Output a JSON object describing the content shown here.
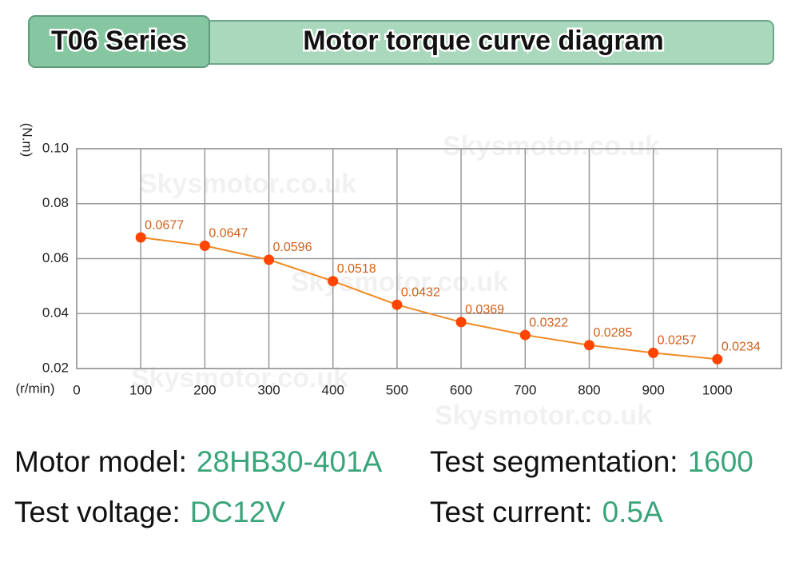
{
  "header": {
    "series": "T06 Series",
    "title": "Motor torque curve diagram"
  },
  "chart_data": {
    "type": "line",
    "ylabel": "(N.m)",
    "xlabel": "(r/min)",
    "x": [
      100,
      200,
      300,
      400,
      500,
      600,
      700,
      800,
      900,
      1000
    ],
    "series": [
      {
        "name": "Torque",
        "color": "#f08a24",
        "marker_color": "#ff4500",
        "values": [
          0.0677,
          0.0647,
          0.0596,
          0.0518,
          0.0432,
          0.0369,
          0.0322,
          0.0285,
          0.0257,
          0.0234
        ]
      }
    ],
    "xlim": [
      0,
      1100
    ],
    "xticks": [
      0,
      100,
      200,
      300,
      400,
      500,
      600,
      700,
      800,
      900,
      1000
    ],
    "ylim": [
      0.02,
      0.1
    ],
    "yticks": [
      0.02,
      0.04,
      0.06,
      0.08,
      {
        "value": 0.1,
        "label": "0.10"
      }
    ],
    "grid": true,
    "watermark": "Skysmotor.co.uk"
  },
  "info": [
    {
      "label": "Motor model:",
      "value": "28HB30-401A"
    },
    {
      "label": "Test segmentation:",
      "value": "1600"
    },
    {
      "label": "Test voltage:",
      "value": "DC12V"
    },
    {
      "label": "Test current:",
      "value": "0.5A"
    }
  ]
}
